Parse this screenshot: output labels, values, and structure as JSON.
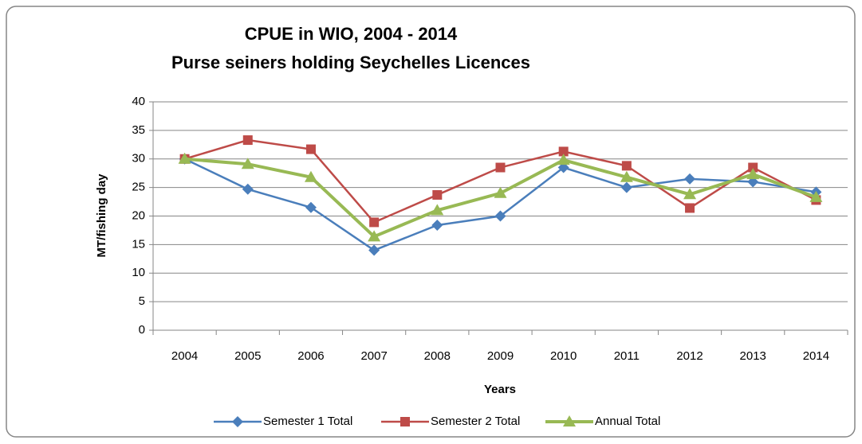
{
  "chart_data": {
    "type": "line",
    "title": "CPUE in WIO, 2004 - 2014",
    "subtitle": "Purse seiners holding Seychelles Licences",
    "x_label": "Years",
    "y_label": "MT/fishing day",
    "categories": [
      "2004",
      "2005",
      "2006",
      "2007",
      "2008",
      "2009",
      "2010",
      "2011",
      "2012",
      "2013",
      "2014"
    ],
    "series": [
      {
        "name": "Semester 1 Total",
        "color": "#4a7ebb",
        "marker": "diamond",
        "values": [
          30,
          24.7,
          21.5,
          14,
          18.4,
          20,
          28.5,
          25,
          26.5,
          26,
          24.2
        ]
      },
      {
        "name": "Semester 2 Total",
        "color": "#be4b48",
        "marker": "square",
        "values": [
          30,
          33.3,
          31.7,
          18.9,
          23.7,
          28.5,
          31.3,
          28.8,
          21.4,
          28.5,
          22.8
        ]
      },
      {
        "name": "Annual Total",
        "color": "#98b954",
        "marker": "triangle",
        "values": [
          30,
          29.1,
          26.8,
          16.4,
          21,
          24,
          29.8,
          26.8,
          23.8,
          27.3,
          23.3
        ]
      }
    ],
    "ylim": [
      0,
      40
    ],
    "yticks": [
      0,
      5,
      10,
      15,
      20,
      25,
      30,
      35,
      40
    ],
    "grid": true,
    "legend": "bottom"
  }
}
